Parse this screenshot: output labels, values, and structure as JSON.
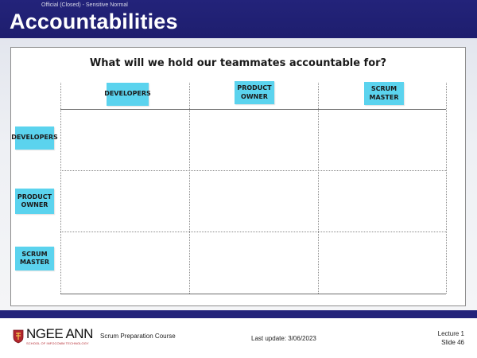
{
  "header": {
    "classification": "Official (Closed) - Sensitive Normal",
    "title": "Accountabilities"
  },
  "card": {
    "title": "What will we hold our teammates accountable for?"
  },
  "columns": [
    {
      "lines": [
        "DEVELOPERS"
      ]
    },
    {
      "lines": [
        "PRODUCT",
        "OWNER"
      ]
    },
    {
      "lines": [
        "SCRUM",
        "MASTER"
      ]
    }
  ],
  "rows": [
    {
      "lines": [
        "DEVELOPERS"
      ]
    },
    {
      "lines": [
        "PRODUCT",
        "OWNER"
      ]
    },
    {
      "lines": [
        "SCRUM",
        "MASTER"
      ]
    }
  ],
  "footer": {
    "logo_text": "NGEE ANN",
    "logo_subtitle": "SCHOOL OF INFOCOMM TECHNOLOGY",
    "course": "Scrum Preparation Course",
    "last_update": "Last update: 3/06/2023",
    "lecture": "Lecture 1",
    "slide": "Slide 46"
  },
  "colors": {
    "header_band": "#23237a",
    "sticky_note": "#5bd3ee",
    "logo_red": "#b3262d"
  }
}
